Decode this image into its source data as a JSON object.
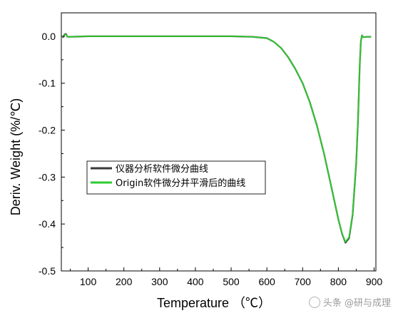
{
  "chart_data": {
    "type": "line",
    "xlabel": "Temperature （℃）",
    "ylabel": "Deriv. Weight (%/℃)",
    "xlim": [
      25,
      905
    ],
    "ylim": [
      -0.5,
      0.05
    ],
    "xticks": [
      100,
      200,
      300,
      400,
      500,
      600,
      700,
      800,
      900
    ],
    "yticks": [
      0.0,
      -0.1,
      -0.2,
      -0.3,
      -0.4,
      -0.5
    ],
    "ytick_labels": [
      "0.0",
      "-0.1",
      "-0.2",
      "-0.3",
      "-0.4",
      "-0.5"
    ],
    "legend_position": "center-left",
    "grid": false,
    "series": [
      {
        "name": "仪器分析软件微分曲线",
        "color": "#3a3a3a",
        "x": [
          30,
          34,
          38,
          42,
          50,
          100,
          200,
          300,
          400,
          500,
          560,
          600,
          620,
          640,
          660,
          680,
          700,
          720,
          740,
          760,
          780,
          800,
          810,
          820,
          830,
          840,
          850,
          855,
          860,
          863,
          866,
          870,
          880,
          890
        ],
        "y": [
          -0.002,
          0.004,
          0.005,
          -0.001,
          -0.001,
          0.0,
          0.0,
          0.0,
          0.0,
          0.0,
          -0.001,
          -0.004,
          -0.012,
          -0.025,
          -0.045,
          -0.07,
          -0.1,
          -0.14,
          -0.19,
          -0.25,
          -0.32,
          -0.39,
          -0.42,
          -0.44,
          -0.43,
          -0.38,
          -0.27,
          -0.18,
          -0.06,
          -0.01,
          0.002,
          -0.002,
          -0.001,
          -0.001
        ]
      },
      {
        "name": "Origin软件微分并平滑后的曲线",
        "color": "#2ecc2e",
        "x": [
          30,
          34,
          38,
          42,
          50,
          100,
          200,
          300,
          400,
          500,
          560,
          600,
          620,
          640,
          660,
          680,
          700,
          720,
          740,
          760,
          780,
          800,
          810,
          820,
          830,
          840,
          850,
          855,
          860,
          863,
          866,
          870,
          880,
          890
        ],
        "y": [
          -0.001,
          0.003,
          0.004,
          -0.001,
          -0.001,
          0.0,
          0.0,
          0.0,
          0.0,
          0.0,
          -0.001,
          -0.004,
          -0.012,
          -0.025,
          -0.045,
          -0.07,
          -0.1,
          -0.14,
          -0.19,
          -0.25,
          -0.32,
          -0.39,
          -0.42,
          -0.438,
          -0.428,
          -0.378,
          -0.268,
          -0.178,
          -0.06,
          -0.01,
          0.002,
          -0.002,
          -0.001,
          -0.001
        ]
      }
    ]
  },
  "watermark": {
    "text": "头条 @研与成理",
    "icon": "watermark-logo-icon"
  }
}
